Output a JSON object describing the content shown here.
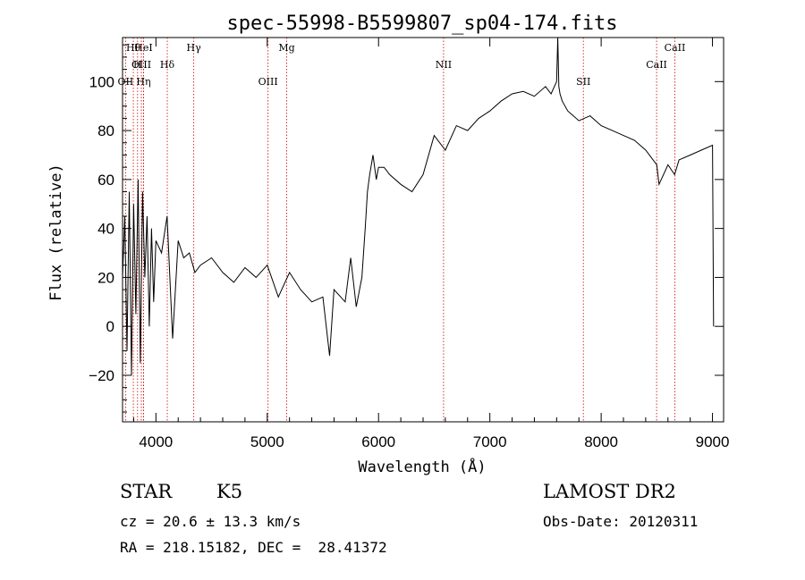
{
  "chart_data": {
    "type": "line",
    "title": "spec-55998-B5599807_sp04-174.fits",
    "xlabel": "Wavelength (Å)",
    "ylabel": "Flux (relative)",
    "xlim": [
      3700,
      9100
    ],
    "ylim": [
      -39,
      118
    ],
    "xticks": [
      4000,
      5000,
      6000,
      7000,
      8000,
      9000
    ],
    "yticks": [
      -20,
      0,
      20,
      40,
      60,
      80,
      100
    ],
    "grid": false,
    "line_color": "#000000",
    "marker_color": "#cc0000",
    "series": [
      {
        "x": [
          3700,
          3720,
          3740,
          3760,
          3780,
          3800,
          3820,
          3840,
          3860,
          3880,
          3900,
          3920,
          3940,
          3960,
          3980,
          4000,
          4050,
          4100,
          4150,
          4200,
          4250,
          4300,
          4350,
          4400,
          4500,
          4600,
          4700,
          4800,
          4900,
          5000,
          5100,
          5200,
          5300,
          5400,
          5500,
          5560,
          5600,
          5700,
          5750,
          5800,
          5850,
          5880,
          5900,
          5920,
          5950,
          5980,
          6000,
          6050,
          6100,
          6200,
          6300,
          6400,
          6500,
          6600,
          6700,
          6800,
          6900,
          7000,
          7100,
          7200,
          7300,
          7400,
          7500,
          7550,
          7600,
          7610,
          7620,
          7630,
          7650,
          7700,
          7800,
          7900,
          8000,
          8100,
          8200,
          8300,
          8400,
          8500,
          8520,
          8600,
          8660,
          8700,
          8800,
          8900,
          9000,
          9010
        ],
        "y": [
          20,
          45,
          -10,
          55,
          -20,
          50,
          5,
          60,
          -15,
          55,
          20,
          45,
          0,
          40,
          10,
          35,
          30,
          45,
          -5,
          35,
          28,
          30,
          22,
          25,
          28,
          22,
          18,
          24,
          20,
          25,
          12,
          22,
          15,
          10,
          12,
          -12,
          15,
          10,
          28,
          8,
          20,
          40,
          55,
          62,
          70,
          60,
          65,
          65,
          62,
          58,
          55,
          62,
          78,
          72,
          82,
          80,
          85,
          88,
          92,
          95,
          96,
          94,
          98,
          95,
          100,
          118,
          98,
          95,
          92,
          88,
          84,
          86,
          82,
          80,
          78,
          76,
          72,
          66,
          58,
          66,
          62,
          68,
          70,
          72,
          74,
          0
        ]
      }
    ],
    "line_markers": [
      {
        "label": "Hθ",
        "x": 3797
      },
      {
        "label": "H",
        "x": 3835
      },
      {
        "label": "OII",
        "x": 3727
      },
      {
        "label": "HeI",
        "x": 3889
      },
      {
        "label": "OIII",
        "x": 3869
      },
      {
        "label": "Hη",
        "x": 3889
      },
      {
        "label": "Hγ",
        "x": 4340
      },
      {
        "label": "Hδ",
        "x": 4102
      },
      {
        "label": "OIII",
        "x": 5007
      },
      {
        "label": "Mg",
        "x": 5175
      },
      {
        "label": "NII",
        "x": 6584
      },
      {
        "label": "SII",
        "x": 7840
      },
      {
        "label": "CaII",
        "x": 8662
      },
      {
        "label": "CaII",
        "x": 8498
      }
    ]
  },
  "info": {
    "object_class": "STAR",
    "subclass": "K5",
    "survey": "LAMOST DR2",
    "redshift": "cz = 20.6 ± 13.3 km/s",
    "obs_date": "Obs-Date: 20120311",
    "coords": "RA = 218.15182, DEC =  28.41372"
  }
}
